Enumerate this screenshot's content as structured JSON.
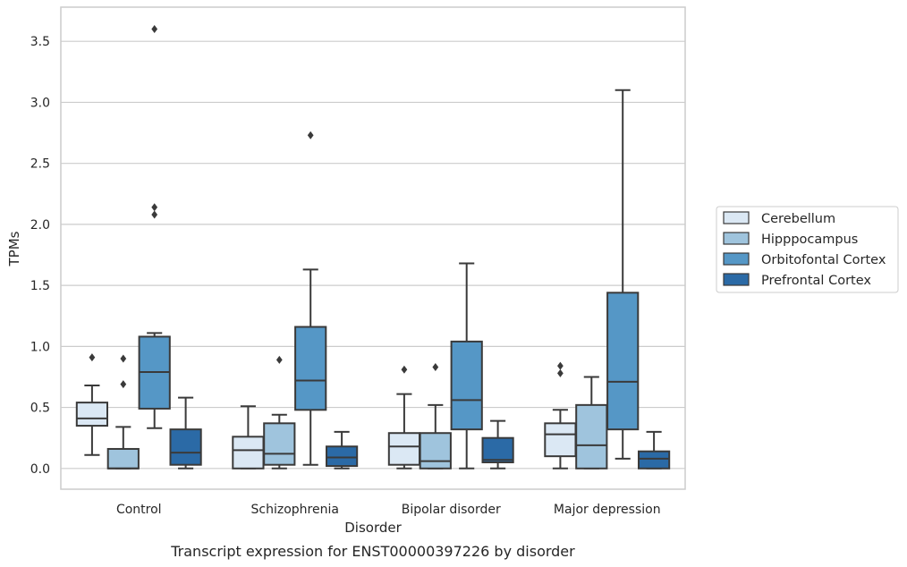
{
  "caption": "Transcript expression for ENST00000397226 by disorder",
  "chart_data": {
    "type": "box",
    "title": "",
    "xlabel": "Disorder",
    "ylabel": "TPMs",
    "ylim": [
      -0.17,
      3.78
    ],
    "yticks": [
      "0.0",
      "0.5",
      "1.0",
      "1.5",
      "2.0",
      "2.5",
      "3.0",
      "3.5"
    ],
    "grid": "horizontal",
    "legend_position": "right",
    "categories": [
      "Control",
      "Schizophrenia",
      "Bipolar disorder",
      "Major depression"
    ],
    "series": [
      {
        "name": "Cerebellum",
        "color": "#dbe8f4",
        "boxes": [
          {
            "whislo": 0.11,
            "q1": 0.35,
            "med": 0.41,
            "q3": 0.54,
            "whishi": 0.68,
            "fliers": [
              0.91
            ]
          },
          {
            "whislo": 0.0,
            "q1": 0.0,
            "med": 0.15,
            "q3": 0.26,
            "whishi": 0.51,
            "fliers": []
          },
          {
            "whislo": 0.0,
            "q1": 0.03,
            "med": 0.18,
            "q3": 0.29,
            "whishi": 0.61,
            "fliers": [
              0.81
            ]
          },
          {
            "whislo": 0.0,
            "q1": 0.1,
            "med": 0.28,
            "q3": 0.37,
            "whishi": 0.48,
            "fliers": [
              0.78,
              0.84
            ]
          }
        ]
      },
      {
        "name": "Hipppocampus",
        "color": "#9fc4dd",
        "boxes": [
          {
            "whislo": 0.0,
            "q1": 0.0,
            "med": 0.0,
            "q3": 0.16,
            "whishi": 0.34,
            "fliers": [
              0.69,
              0.9
            ]
          },
          {
            "whislo": 0.0,
            "q1": 0.03,
            "med": 0.12,
            "q3": 0.37,
            "whishi": 0.44,
            "fliers": [
              0.89
            ]
          },
          {
            "whislo": 0.0,
            "q1": 0.0,
            "med": 0.06,
            "q3": 0.29,
            "whishi": 0.52,
            "fliers": [
              0.83
            ]
          },
          {
            "whislo": 0.0,
            "q1": 0.0,
            "med": 0.19,
            "q3": 0.52,
            "whishi": 0.75,
            "fliers": []
          }
        ]
      },
      {
        "name": "Orbitofontal Cortex",
        "color": "#5597c6",
        "boxes": [
          {
            "whislo": 0.33,
            "q1": 0.49,
            "med": 0.79,
            "q3": 1.08,
            "whishi": 1.11,
            "fliers": [
              2.08,
              2.14,
              3.6
            ]
          },
          {
            "whislo": 0.03,
            "q1": 0.48,
            "med": 0.72,
            "q3": 1.16,
            "whishi": 1.63,
            "fliers": [
              2.73
            ]
          },
          {
            "whislo": 0.0,
            "q1": 0.32,
            "med": 0.56,
            "q3": 1.04,
            "whishi": 1.68,
            "fliers": []
          },
          {
            "whislo": 0.08,
            "q1": 0.32,
            "med": 0.71,
            "q3": 1.44,
            "whishi": 3.1,
            "fliers": []
          }
        ]
      },
      {
        "name": "Prefrontal Cortex",
        "color": "#2b6aa6",
        "boxes": [
          {
            "whislo": 0.0,
            "q1": 0.03,
            "med": 0.13,
            "q3": 0.32,
            "whishi": 0.58,
            "fliers": []
          },
          {
            "whislo": 0.0,
            "q1": 0.02,
            "med": 0.09,
            "q3": 0.18,
            "whishi": 0.3,
            "fliers": []
          },
          {
            "whislo": 0.0,
            "q1": 0.05,
            "med": 0.07,
            "q3": 0.25,
            "whishi": 0.39,
            "fliers": []
          },
          {
            "whislo": 0.0,
            "q1": 0.0,
            "med": 0.08,
            "q3": 0.14,
            "whishi": 0.3,
            "fliers": []
          }
        ]
      }
    ]
  }
}
